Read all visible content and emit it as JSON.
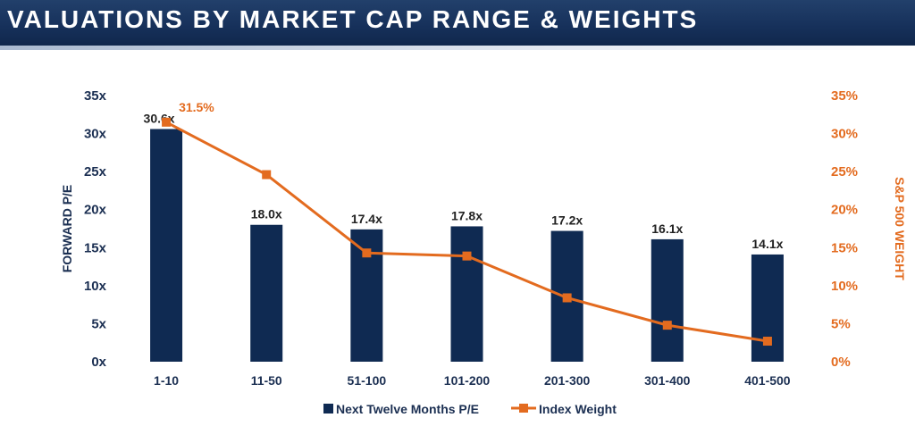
{
  "header": {
    "title": "VALUATIONS BY MARKET CAP RANGE & WEIGHTS"
  },
  "colors": {
    "bar": "#0f2a52",
    "line": "#e36b1f",
    "banner": "#16305a"
  },
  "chart_data": {
    "type": "bar",
    "categories": [
      "1-10",
      "11-50",
      "51-100",
      "101-200",
      "201-300",
      "301-400",
      "401-500"
    ],
    "series": [
      {
        "name": "Next Twelve Months P/E",
        "type": "bar",
        "axis": "left",
        "values": [
          30.6,
          18.0,
          17.4,
          17.8,
          17.2,
          16.1,
          14.1
        ],
        "labels": [
          "30.6x",
          "18.0x",
          "17.4x",
          "17.8x",
          "17.2x",
          "16.1x",
          "14.1x"
        ]
      },
      {
        "name": "Index Weight",
        "type": "line",
        "axis": "right",
        "values": [
          31.5,
          24.6,
          14.3,
          13.9,
          8.4,
          4.8,
          2.7
        ],
        "labels": [
          "31.5%",
          "",
          "",
          "",
          "",
          "",
          ""
        ]
      }
    ],
    "ylabel": "FORWARD P/E",
    "y2label": "S&P 500 WEIGHT",
    "ylim": [
      0,
      35
    ],
    "y2lim": [
      0,
      35
    ],
    "yticks": [
      "0x",
      "5x",
      "10x",
      "15x",
      "20x",
      "25x",
      "30x",
      "35x"
    ],
    "y2ticks": [
      "0%",
      "5%",
      "10%",
      "15%",
      "20%",
      "25%",
      "30%",
      "35%"
    ],
    "grid": false,
    "legend": "bottom"
  }
}
